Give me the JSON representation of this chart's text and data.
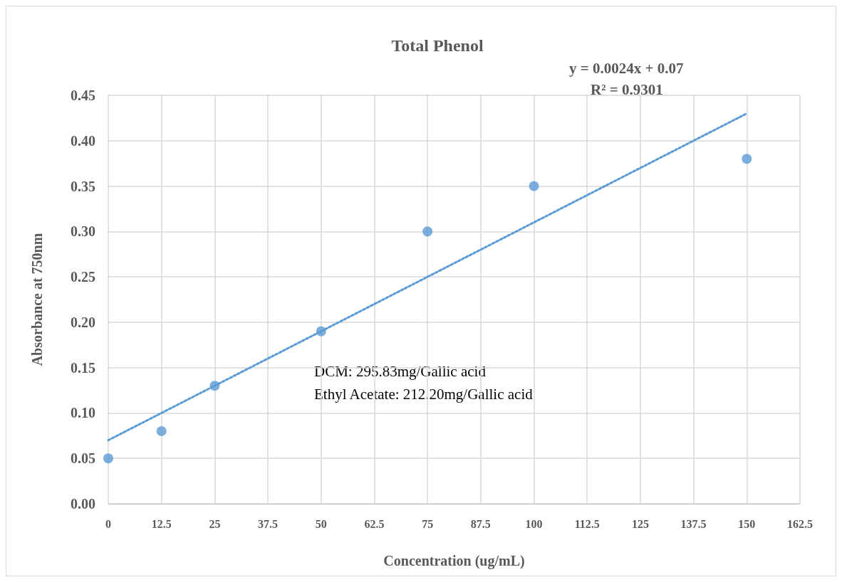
{
  "chart_data": {
    "type": "scatter",
    "title": "Total Phenol",
    "xlabel": "Concentration (ug/mL)",
    "ylabel": "Absorbance at 750nm",
    "annotations": [
      "y = 0.0024x + 0.07",
      "R² = 0.9301",
      "DCM: 295.83mg/Gallic acid",
      "Ethyl Acetate: 212.20mg/Gallic acid"
    ],
    "series": [
      {
        "color": "#5b9bd5",
        "marker": "circle",
        "x": [
          0,
          12.5,
          25,
          50,
          75,
          100,
          150
        ],
        "values": [
          0.05,
          0.08,
          0.13,
          0.19,
          0.3,
          0.35,
          0.38
        ]
      },
      {
        "type": "line",
        "color": "#5b9bd5",
        "marker": "none",
        "line_style": "dotted",
        "x": [
          0,
          150
        ],
        "values": [
          0.07,
          0.43
        ]
      }
    ],
    "xlim": [
      0,
      162.5
    ],
    "xticks": [
      0,
      12.5,
      25,
      37.5,
      50,
      62.5,
      75,
      87.5,
      100,
      112.5,
      125,
      137.5,
      150,
      162.5
    ],
    "ylim": [
      0,
      0.45
    ],
    "yticks": [
      {
        "value": 0,
        "label": "0.00"
      },
      {
        "value": 0.05,
        "label": "0.05"
      },
      {
        "value": 0.1,
        "label": "0.10"
      },
      {
        "value": 0.15,
        "label": "0.15"
      },
      {
        "value": 0.2,
        "label": "0.20"
      },
      {
        "value": 0.25,
        "label": "0.25"
      },
      {
        "value": 0.3,
        "label": "0.30"
      },
      {
        "value": 0.35,
        "label": "0.35"
      },
      {
        "value": 0.4,
        "label": "0.40"
      },
      {
        "value": 0.45,
        "label": "0.45"
      }
    ],
    "grid": true
  }
}
